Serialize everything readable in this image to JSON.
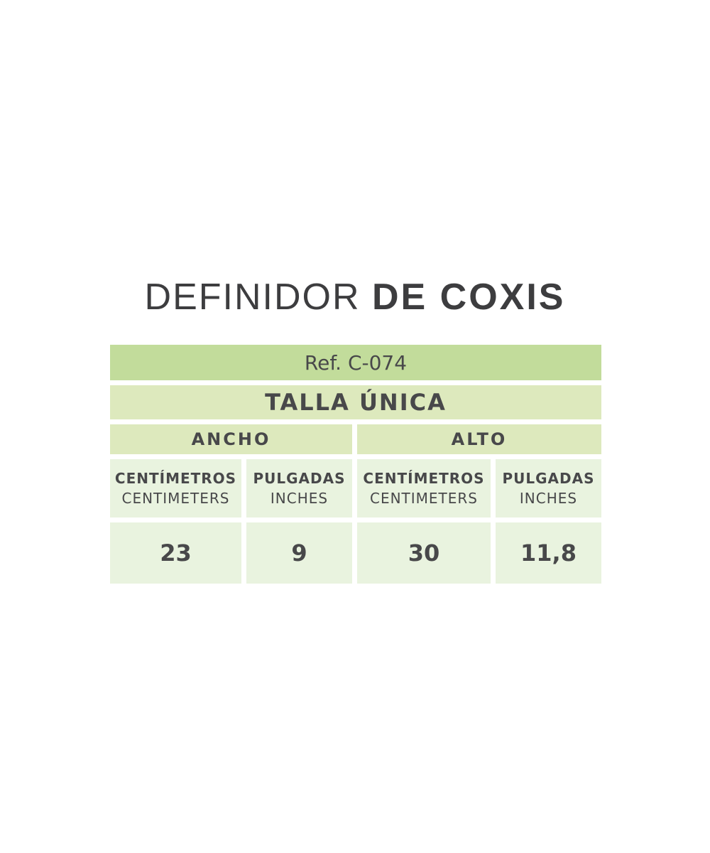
{
  "title": {
    "light": "DEFINIDOR",
    "bold": "DE COXIS"
  },
  "table": {
    "reference": "Ref. C-074",
    "size": "TALLA ÚNICA",
    "groups": [
      "ANCHO",
      "ALTO"
    ],
    "columns": [
      {
        "es": "CENTÍMETROS",
        "en": "CENTIMETERS"
      },
      {
        "es": "PULGADAS",
        "en": "INCHES"
      },
      {
        "es": "CENTÍMETROS",
        "en": "CENTIMETERS"
      },
      {
        "es": "PULGADAS",
        "en": "INCHES"
      }
    ],
    "values": [
      "23",
      "9",
      "30",
      "11,8"
    ]
  },
  "colors": {
    "header_dark": "#c2dc9b",
    "header_mid": "#dde9bd",
    "cell_light": "#e9f3df",
    "text": "#48484a"
  }
}
